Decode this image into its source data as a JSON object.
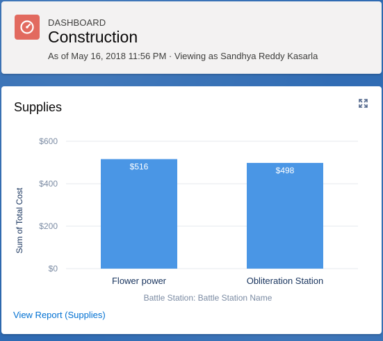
{
  "header": {
    "eyebrow": "DASHBOARD",
    "title": "Construction",
    "subtitle": "As of May 16, 2018 11:56 PM · Viewing as Sandhya Reddy Kasarla",
    "icon": "gauge-icon",
    "icon_color": "#e26a5f"
  },
  "card": {
    "title": "Supplies",
    "expand_icon": "expand-icon",
    "view_report_label": "View Report (Supplies)"
  },
  "chart_data": {
    "type": "bar",
    "categories": [
      "Flower power",
      "Obliteration Station"
    ],
    "values": [
      516,
      498
    ],
    "data_labels": [
      "$516",
      "$498"
    ],
    "xlabel": "Battle Station: Battle Station Name",
    "ylabel": "Sum of Total Cost",
    "yticks": [
      0,
      200,
      400,
      600
    ],
    "ytick_labels": [
      "$0",
      "$200",
      "$400",
      "$600"
    ],
    "ylim": [
      0,
      600
    ],
    "bar_color": "#4a96e5",
    "grid": true
  }
}
